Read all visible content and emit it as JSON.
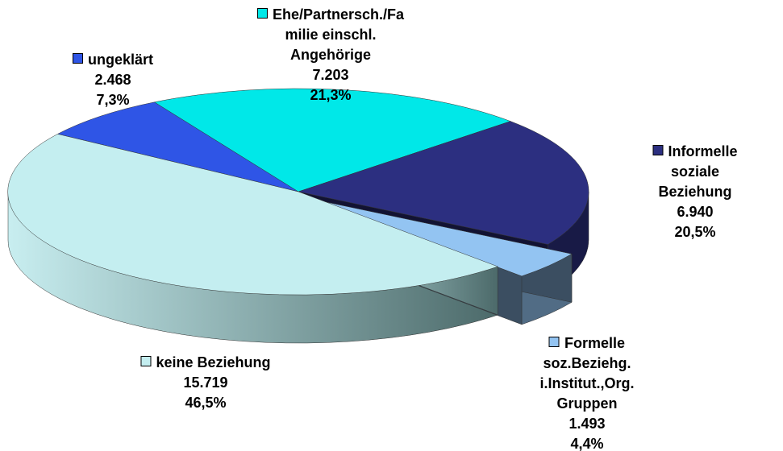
{
  "chart_data": {
    "type": "pie3d",
    "categories": [
      "ungeklärt",
      "Ehe/Partnersch./Fa\nmilie einschl.\nAngehörige",
      "Informelle soziale\nBeziehung",
      "Formelle\nsoz.Beziehg.\ni.Institut.,Org.\nGruppen",
      "keine Beziehung"
    ],
    "values": [
      2468,
      7203,
      6940,
      1493,
      15719
    ],
    "value_labels": [
      "2.468",
      "7.203",
      "6.940",
      "1.493",
      "15.719"
    ],
    "percentages": [
      7.3,
      21.3,
      20.5,
      4.4,
      46.5
    ],
    "percentage_labels": [
      "7,3%",
      "21,3%",
      "20,5%",
      "4,4%",
      "46,5%"
    ],
    "colors": [
      "#2f55e6",
      "#00e8e8",
      "#2c2f80",
      "#93c4f2",
      "#c4eef0"
    ],
    "exploded": [
      false,
      false,
      false,
      true,
      false
    ]
  }
}
